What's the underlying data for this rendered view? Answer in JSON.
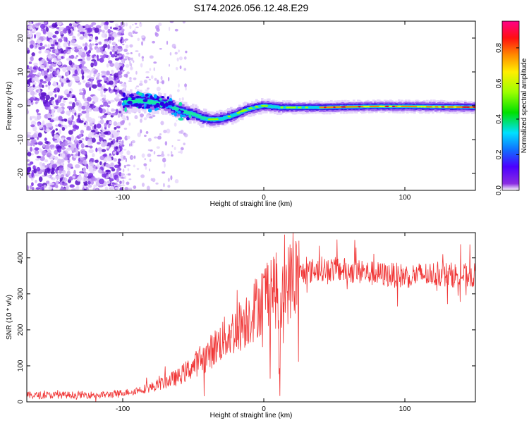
{
  "chart_data": [
    {
      "type": "heatmap",
      "title": "S174.2026.056.12.48.E29",
      "xlabel": "Height of straight line (km)",
      "ylabel": "Frequency (Hz)",
      "xlim": [
        -168,
        150
      ],
      "ylim": [
        -25,
        25
      ],
      "xticks": [
        -100,
        0,
        100
      ],
      "yticks": [
        -20,
        -10,
        0,
        10,
        20
      ],
      "colorbar": {
        "label": "Normalized spectral amplitude",
        "range": [
          0,
          0.95
        ],
        "ticks": [
          "0.0",
          "0.2",
          "0.4",
          "0.6",
          "0.8"
        ],
        "colormap": "rainbow (purple to magenta)"
      },
      "trace_centerline": {
        "x": [
          -100,
          -90,
          -80,
          -70,
          -60,
          -50,
          -45,
          -40,
          -35,
          -30,
          -25,
          -20,
          -15,
          -10,
          -5,
          0,
          10,
          20,
          40,
          60,
          80,
          100,
          120,
          150
        ],
        "y": [
          1,
          1.5,
          1,
          0.5,
          -1.5,
          -2.5,
          -3.5,
          -4,
          -4,
          -3.8,
          -3.2,
          -2.5,
          -1.5,
          -0.8,
          -0.3,
          0,
          -0.5,
          -0.5,
          -0.5,
          -0.3,
          -0.2,
          -0.2,
          -0.3,
          -0.4
        ]
      },
      "colors": {
        "noise": "#7a2ee6",
        "peak": "#e0102b"
      }
    },
    {
      "type": "line",
      "xlabel": "Height of straight line (km)",
      "ylabel": "SNR (10 * v/v)",
      "xlim": [
        -168,
        150
      ],
      "ylim": [
        0,
        470
      ],
      "xticks": [
        -100,
        0,
        100
      ],
      "yticks": [
        0,
        100,
        200,
        300,
        400
      ],
      "series": [
        {
          "name": "SNR",
          "color": "#f03535",
          "envelope_x": [
            -168,
            -110,
            -100,
            -90,
            -80,
            -70,
            -60,
            -50,
            -40,
            -30,
            -20,
            -10,
            0,
            5,
            10,
            11,
            12,
            15,
            20,
            25,
            30,
            40,
            60,
            80,
            100,
            120,
            150
          ],
          "envelope_y": [
            18,
            20,
            25,
            32,
            40,
            55,
            70,
            100,
            130,
            170,
            200,
            240,
            290,
            330,
            300,
            60,
            250,
            320,
            340,
            355,
            360,
            370,
            365,
            355,
            350,
            355,
            350
          ]
        }
      ]
    }
  ]
}
